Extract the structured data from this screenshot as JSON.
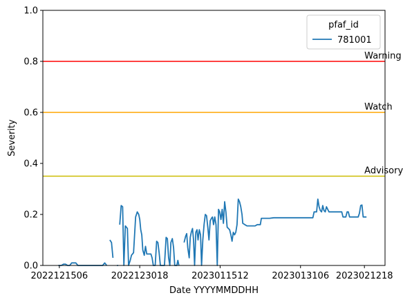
{
  "chart_data": {
    "type": "line",
    "title": "",
    "xlabel": "Date YYYYMMDDHH",
    "ylabel": "Severity",
    "xlim": [
      0,
      166
    ],
    "ylim": [
      0,
      1.0
    ],
    "x_ticks": [
      {
        "x": 8,
        "label": "2022121506"
      },
      {
        "x": 47,
        "label": "2022123018"
      },
      {
        "x": 86,
        "label": "2023011512"
      },
      {
        "x": 125,
        "label": "2023013106"
      },
      {
        "x": 156,
        "label": "2023021218"
      }
    ],
    "y_ticks": [
      0.0,
      0.2,
      0.4,
      0.6,
      0.8,
      1.0
    ],
    "y_tick_labels": [
      "0.0",
      "0.2",
      "0.4",
      "0.6",
      "0.8",
      "1.0"
    ],
    "grid": false,
    "legend": {
      "title": "pfaf_id",
      "position": "top-right"
    },
    "series": [
      {
        "name": "781001",
        "color": "#1f77b4",
        "segments": [
          [
            [
              7.5,
              0.0
            ],
            [
              9,
              0.0
            ],
            [
              10,
              0.005
            ],
            [
              11,
              0.005
            ],
            [
              12,
              0.0
            ],
            [
              13,
              0.0
            ],
            [
              14,
              0.01
            ],
            [
              15,
              0.01
            ],
            [
              16,
              0.01
            ],
            [
              17,
              0.0
            ],
            [
              18,
              0.0
            ],
            [
              20,
              0.0
            ],
            [
              22,
              0.0
            ],
            [
              24,
              0.0
            ],
            [
              26,
              0.0
            ],
            [
              28,
              0.0
            ],
            [
              29,
              0.0
            ],
            [
              30,
              0.01
            ],
            [
              31,
              0.0
            ]
          ],
          [
            [
              32.5,
              0.1
            ],
            [
              33.3,
              0.09
            ],
            [
              34,
              0.03
            ]
          ],
          [
            [
              36,
              0.0
            ],
            [
              36.5,
              0.0
            ]
          ],
          [
            [
              37.3,
              0.16
            ],
            [
              38,
              0.235
            ],
            [
              38.7,
              0.23
            ],
            [
              39.3,
              0.0
            ],
            [
              40,
              0.155
            ],
            [
              41,
              0.145
            ],
            [
              41.6,
              0.0
            ],
            [
              42.4,
              0.02
            ],
            [
              43,
              0.04
            ],
            [
              44,
              0.05
            ],
            [
              45,
              0.19
            ],
            [
              45.8,
              0.21
            ],
            [
              46.5,
              0.2
            ],
            [
              47,
              0.18
            ],
            [
              47.5,
              0.14
            ],
            [
              48,
              0.12
            ],
            [
              48.5,
              0.06
            ],
            [
              49.2,
              0.04
            ],
            [
              49.8,
              0.075
            ],
            [
              50.4,
              0.045
            ],
            [
              51.2,
              0.045
            ],
            [
              51.8,
              0.045
            ],
            [
              52.4,
              0.045
            ],
            [
              53,
              0.03
            ],
            [
              53.6,
              0.0
            ],
            [
              54.5,
              0.0
            ],
            [
              55.2,
              0.095
            ],
            [
              55.8,
              0.09
            ],
            [
              56.4,
              0.05
            ],
            [
              57,
              0.0
            ],
            [
              58,
              0.0
            ],
            [
              59,
              0.0
            ],
            [
              59.8,
              0.11
            ],
            [
              60.4,
              0.105
            ],
            [
              61,
              0.03
            ],
            [
              61.6,
              0.0
            ],
            [
              62.1,
              0.09
            ],
            [
              62.8,
              0.105
            ],
            [
              63.4,
              0.07
            ],
            [
              64,
              0.0
            ],
            [
              65,
              0.0
            ],
            [
              65.5,
              0.02
            ],
            [
              66,
              0.0
            ]
          ],
          [
            [
              68.5,
              0.09
            ],
            [
              69.3,
              0.115
            ],
            [
              69.8,
              0.125
            ],
            [
              70.3,
              0.07
            ],
            [
              71,
              0.03
            ],
            [
              71.5,
              0.11
            ],
            [
              72,
              0.13
            ],
            [
              72.6,
              0.145
            ],
            [
              73.1,
              0.1
            ],
            [
              73.6,
              0.0
            ],
            [
              74.2,
              0.13
            ],
            [
              74.8,
              0.14
            ],
            [
              75.3,
              0.1
            ],
            [
              75.9,
              0.14
            ],
            [
              76.5,
              0.12
            ],
            [
              77,
              0.0
            ],
            [
              77.6,
              0.1
            ],
            [
              78.2,
              0.16
            ],
            [
              78.8,
              0.2
            ],
            [
              79.4,
              0.195
            ],
            [
              80,
              0.15
            ],
            [
              80.6,
              0.1
            ],
            [
              81.2,
              0.175
            ],
            [
              81.8,
              0.185
            ],
            [
              82.3,
              0.19
            ],
            [
              82.8,
              0.16
            ],
            [
              83.4,
              0.19
            ],
            [
              84,
              0.16
            ],
            [
              84.6,
              0.0
            ],
            [
              85.2,
              0.22
            ],
            [
              85.8,
              0.21
            ],
            [
              86.4,
              0.18
            ],
            [
              87,
              0.22
            ],
            [
              87.6,
              0.165
            ],
            [
              88.2,
              0.25
            ],
            [
              88.8,
              0.21
            ],
            [
              89.4,
              0.15
            ],
            [
              90,
              0.145
            ],
            [
              90.6,
              0.14
            ],
            [
              91.2,
              0.12
            ],
            [
              91.8,
              0.095
            ],
            [
              92.4,
              0.13
            ],
            [
              93,
              0.12
            ],
            [
              93.6,
              0.13
            ],
            [
              94.2,
              0.16
            ],
            [
              94.8,
              0.26
            ],
            [
              95.4,
              0.25
            ],
            [
              96,
              0.23
            ],
            [
              96.6,
              0.2
            ],
            [
              97,
              0.165
            ],
            [
              98,
              0.16
            ],
            [
              99,
              0.155
            ],
            [
              100,
              0.155
            ],
            [
              101,
              0.155
            ],
            [
              102,
              0.155
            ],
            [
              103,
              0.155
            ],
            [
              104,
              0.16
            ],
            [
              104.8,
              0.16
            ],
            [
              105.5,
              0.16
            ],
            [
              106,
              0.185
            ],
            [
              108,
              0.185
            ],
            [
              110,
              0.185
            ],
            [
              112,
              0.187
            ],
            [
              116,
              0.187
            ],
            [
              120,
              0.187
            ],
            [
              124,
              0.187
            ],
            [
              128,
              0.187
            ],
            [
              130,
              0.187
            ],
            [
              131,
              0.187
            ],
            [
              131.6,
              0.21
            ],
            [
              132.2,
              0.21
            ],
            [
              132.8,
              0.21
            ],
            [
              133.4,
              0.26
            ],
            [
              134,
              0.23
            ],
            [
              134.6,
              0.215
            ],
            [
              135.2,
              0.21
            ],
            [
              135.8,
              0.235
            ],
            [
              136.4,
              0.215
            ],
            [
              137,
              0.21
            ],
            [
              137.6,
              0.23
            ],
            [
              138.2,
              0.22
            ],
            [
              138.8,
              0.21
            ],
            [
              139.4,
              0.21
            ],
            [
              140,
              0.21
            ],
            [
              142,
              0.21
            ],
            [
              144,
              0.21
            ],
            [
              145,
              0.21
            ],
            [
              145.6,
              0.19
            ],
            [
              146.2,
              0.19
            ],
            [
              147,
              0.19
            ],
            [
              147.6,
              0.21
            ],
            [
              148.2,
              0.21
            ],
            [
              148.8,
              0.19
            ],
            [
              150,
              0.19
            ],
            [
              152,
              0.19
            ],
            [
              153,
              0.19
            ],
            [
              153.6,
              0.205
            ],
            [
              154.2,
              0.235
            ],
            [
              154.8,
              0.237
            ],
            [
              155.4,
              0.19
            ],
            [
              156,
              0.19
            ],
            [
              157,
              0.19
            ]
          ]
        ]
      }
    ],
    "thresholds": [
      {
        "name": "Warning",
        "value": 0.8,
        "color": "#ff0000"
      },
      {
        "name": "Watch",
        "value": 0.6,
        "color": "#ffa500"
      },
      {
        "name": "Advisory",
        "value": 0.35,
        "color": "#ccbb00"
      }
    ]
  }
}
